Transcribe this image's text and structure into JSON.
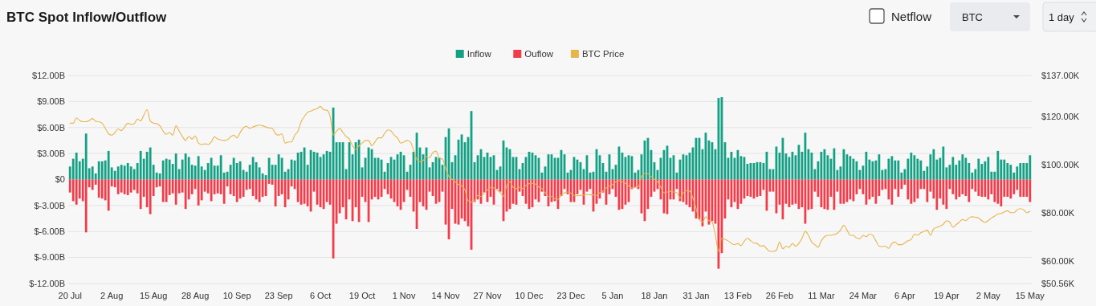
{
  "chart_data": {
    "type": "bar",
    "title": "BTC Spot Inflow/Outflow",
    "annotations": [
      "Netflow",
      "BTC",
      "1 day"
    ],
    "categories": [
      "20 Jul",
      null,
      null,
      null,
      null,
      null,
      null,
      null,
      null,
      null,
      null,
      null,
      null,
      "2 Aug",
      null,
      null,
      null,
      null,
      null,
      null,
      null,
      null,
      null,
      null,
      null,
      null,
      "15 Aug",
      null,
      null,
      null,
      null,
      null,
      null,
      null,
      null,
      null,
      null,
      null,
      null,
      "28 Aug",
      null,
      null,
      null,
      null,
      null,
      null,
      null,
      null,
      null,
      null,
      null,
      null,
      "10 Sep",
      null,
      null,
      null,
      null,
      null,
      null,
      null,
      null,
      null,
      null,
      null,
      null,
      "23 Sep",
      null,
      null,
      null,
      null,
      null,
      null,
      null,
      null,
      null,
      null,
      null,
      null,
      "6 Oct",
      null,
      null,
      null,
      null,
      null,
      null,
      null,
      null,
      null,
      null,
      null,
      null,
      "19 Oct",
      null,
      null,
      null,
      null,
      null,
      null,
      null,
      null,
      null,
      null,
      null,
      null,
      "1 Nov",
      null,
      null,
      null,
      null,
      null,
      null,
      null,
      null,
      null,
      null,
      null,
      null,
      "14 Nov",
      null,
      null,
      null,
      null,
      null,
      null,
      null,
      null,
      null,
      null,
      null,
      null,
      "27 Nov",
      null,
      null,
      null,
      null,
      null,
      null,
      null,
      null,
      null,
      null,
      null,
      null,
      "10 Dec",
      null,
      null,
      null,
      null,
      null,
      null,
      null,
      null,
      null,
      null,
      null,
      null,
      "23 Dec",
      null,
      null,
      null,
      null,
      null,
      null,
      null,
      null,
      null,
      null,
      null,
      null,
      "5 Jan",
      null,
      null,
      null,
      null,
      null,
      null,
      null,
      null,
      null,
      null,
      null,
      null,
      "18 Jan",
      null,
      null,
      null,
      null,
      null,
      null,
      null,
      null,
      null,
      null,
      null,
      null,
      "31 Jan",
      null,
      null,
      null,
      null,
      null,
      null,
      null,
      null,
      null,
      null,
      null,
      null,
      "13 Feb",
      null,
      null,
      null,
      null,
      null,
      null,
      null,
      null,
      null,
      null,
      null,
      null,
      "26 Feb",
      null,
      null,
      null,
      null,
      null,
      null,
      null,
      null,
      null,
      null,
      null,
      null,
      "11 Mar",
      null,
      null,
      null,
      null,
      null,
      null,
      null,
      null,
      null,
      null,
      null,
      null,
      "24 Mar",
      null,
      null,
      null,
      null,
      null,
      null,
      null,
      null,
      null,
      null,
      null,
      null,
      "6 Apr",
      null,
      null,
      null,
      null,
      null,
      null,
      null,
      null,
      null,
      null,
      null,
      null,
      "19 Apr",
      null,
      null,
      null,
      null,
      null,
      null,
      null,
      null,
      null,
      null,
      null,
      null,
      "2 May",
      null,
      null,
      null,
      null,
      null,
      null,
      null,
      null,
      null,
      null,
      null,
      null,
      "15 May"
    ],
    "series": [
      {
        "name": "Inflow",
        "color": "#14a085",
        "values": [
          1.5,
          2.4,
          3.1,
          2.1,
          2.4,
          5.3,
          1.3,
          1.5,
          0.7,
          2.1,
          2.1,
          2.2,
          3.3,
          1.4,
          1.0,
          1.5,
          1.7,
          1.6,
          1.9,
          1.5,
          1.2,
          1.9,
          3.3,
          2.4,
          3.2,
          3.7,
          1.7,
          0.8,
          0.7,
          2.2,
          2.4,
          2.3,
          1.8,
          3.0,
          1.2,
          2.3,
          3.0,
          2.6,
          1.7,
          1.6,
          2.7,
          1.5,
          1.1,
          1.9,
          2.5,
          1.6,
          1.6,
          2.8,
          0.8,
          0.9,
          1.7,
          2.5,
          1.9,
          2.1,
          1.1,
          0.9,
          1.7,
          2.6,
          2.0,
          1.4,
          0.7,
          0.5,
          2.5,
          1.7,
          1.7,
          2.9,
          2.5,
          0.9,
          1.2,
          2.3,
          2.2,
          3.1,
          3.2,
          3.7,
          1.7,
          3.4,
          3.2,
          3.1,
          2.6,
          2.9,
          3.3,
          3.2,
          8.3,
          4.3,
          4.3,
          4.3,
          1.2,
          4.3,
          2.9,
          4.3,
          4.6,
          1.4,
          2.5,
          3.7,
          3.5,
          2.5,
          2.5,
          2.3,
          0.9,
          1.9,
          2.6,
          2.3,
          2.9,
          3.2,
          2.8,
          0.9,
          1.7,
          3.2,
          5.4,
          3.7,
          2.9,
          3.7,
          1.4,
          2.0,
          2.6,
          2.5,
          1.7,
          4.9,
          5.9,
          2.0,
          2.8,
          4.6,
          5.2,
          4.3,
          4.9,
          7.9,
          2.0,
          2.8,
          3.5,
          2.6,
          3.1,
          2.6,
          2.8,
          1.1,
          1.5,
          4.5,
          3.7,
          3.5,
          2.6,
          2.6,
          1.2,
          1.9,
          2.6,
          3.2,
          3.1,
          2.8,
          2.5,
          0.8,
          1.5,
          2.9,
          2.9,
          2.5,
          2.5,
          3.4,
          2.9,
          0.8,
          1.1,
          2.6,
          2.3,
          2.0,
          1.2,
          2.8,
          0.8,
          0.9,
          3.5,
          2.8,
          1.9,
          0.9,
          2.9,
          1.2,
          1.7,
          3.8,
          3.1,
          2.6,
          2.8,
          2.7,
          0.8,
          1.1,
          2.9,
          4.5,
          4.8,
          3.4,
          2.0,
          1.1,
          2.5,
          3.4,
          3.9,
          2.5,
          2.8,
          0.8,
          2.3,
          2.9,
          2.8,
          3.1,
          3.7,
          4.8,
          4.8,
          3.5,
          5.4,
          4.5,
          4.3,
          3.5,
          9.4,
          9.5,
          4.3,
          2.5,
          3.2,
          2.5,
          3.4,
          2.7,
          2.6,
          1.8,
          1.9,
          1.9,
          2.0,
          2.0,
          1.9,
          3.2,
          1.2,
          1.2,
          3.8,
          3.1,
          4.8,
          3.0,
          2.6,
          3.2,
          2.8,
          4.0,
          3.2,
          5.4,
          3.5,
          3.1,
          1.2,
          2.1,
          3.2,
          3.5,
          2.8,
          2.4,
          3.6,
          1.1,
          1.5,
          3.5,
          2.9,
          2.7,
          2.4,
          2.1,
          1.1,
          1.6,
          3.2,
          2.3,
          2.1,
          2.2,
          2.9,
          1.1,
          1.2,
          2.4,
          2.7,
          2.2,
          2.2,
          0.8,
          1.2,
          2.4,
          3.1,
          2.8,
          2.4,
          2.2,
          1.0,
          1.5,
          2.9,
          3.5,
          2.3,
          2.5,
          3.8,
          1.4,
          1.7,
          2.6,
          1.7,
          2.2,
          2.9,
          2.5,
          1.9,
          0.8,
          1.2,
          2.4,
          1.8,
          2.1,
          2.6,
          0.9,
          0.9,
          3.3,
          2.3,
          2.3,
          1.9,
          1.7,
          0.8,
          1.5,
          1.9,
          1.9,
          1.9,
          2.8
        ]
      },
      {
        "name": "Ouflow",
        "color": "#ef3d4c",
        "values": [
          -1.5,
          -2.5,
          -2.9,
          -2.2,
          -2.5,
          -6.1,
          -0.9,
          -1.2,
          -0.6,
          -2.1,
          -2.2,
          -2.4,
          -3.6,
          -0.8,
          -0.9,
          -1.7,
          -1.5,
          -1.7,
          -1.8,
          -1.5,
          -1.2,
          -1.6,
          -3.4,
          -2.0,
          -3.2,
          -4.0,
          -1.9,
          -0.9,
          -0.8,
          -2.6,
          -2.6,
          -1.8,
          -1.6,
          -2.9,
          -1.6,
          -1.5,
          -3.4,
          -2.3,
          -1.7,
          -1.1,
          -3.0,
          -2.4,
          -1.4,
          -1.6,
          -2.5,
          -1.7,
          -1.6,
          -1.7,
          -2.8,
          -0.8,
          -1.7,
          -1.9,
          -2.6,
          -2.2,
          -2.0,
          -1.2,
          -1.1,
          -1.9,
          -2.3,
          -2.6,
          -2.0,
          -1.9,
          -0.5,
          -0.6,
          -3.1,
          -1.9,
          -1.7,
          -3.2,
          -2.3,
          -0.8,
          -1.1,
          -2.6,
          -2.9,
          -2.8,
          -3.1,
          -3.7,
          -1.4,
          -2.9,
          -3.2,
          -3.4,
          -2.6,
          -2.9,
          -9.1,
          -5.1,
          -3.9,
          -3.2,
          -4.6,
          -2.3,
          -4.8,
          -3.2,
          -4.9,
          -2.0,
          -2.6,
          -4.9,
          -2.3,
          -2.0,
          -2.3,
          -2.0,
          -1.1,
          -1.7,
          -2.2,
          -2.6,
          -3.1,
          -3.5,
          -2.6,
          -1.2,
          -2.0,
          -3.7,
          -5.7,
          -2.6,
          -3.1,
          -3.5,
          -1.4,
          -1.9,
          -2.8,
          -2.6,
          -1.4,
          -5.2,
          -6.9,
          -3.4,
          -5.1,
          -5.2,
          -4.5,
          -4.8,
          -5.4,
          -8.1,
          -2.6,
          -2.3,
          -2.8,
          -1.5,
          -2.6,
          -2.0,
          -2.9,
          -1.1,
          -1.4,
          -4.8,
          -3.7,
          -3.4,
          -2.8,
          -2.9,
          -1.4,
          -1.9,
          -2.8,
          -3.4,
          -3.2,
          -2.3,
          -2.6,
          -1.4,
          -1.9,
          -3.1,
          -2.6,
          -2.5,
          -3.4,
          -1.9,
          -1.1,
          -1.7,
          -2.6,
          -2.6,
          -1.7,
          -1.2,
          -2.9,
          -1.4,
          -1.1,
          -3.7,
          -2.8,
          -2.2,
          -1.5,
          -2.9,
          -1.7,
          -1.1,
          -2.0,
          -3.5,
          -3.4,
          -2.9,
          -2.6,
          -1.1,
          -0.9,
          -1.1,
          -3.9,
          -4.8,
          -3.4,
          -2.0,
          -1.4,
          -1.1,
          -2.3,
          -3.9,
          -4.0,
          -2.3,
          -2.3,
          -1.1,
          -2.5,
          -2.6,
          -2.9,
          -3.2,
          -3.7,
          -4.5,
          -4.6,
          -5.4,
          -3.7,
          -5.2,
          -4.8,
          -5.1,
          -10.3,
          -8.5,
          -4.5,
          -2.3,
          -3.2,
          -2.6,
          -3.4,
          -2.8,
          -2.2,
          -1.9,
          -2.0,
          -2.2,
          -2.0,
          -1.9,
          -1.2,
          -3.6,
          -1.4,
          -1.4,
          -3.9,
          -2.9,
          -4.6,
          -2.8,
          -3.2,
          -2.9,
          -2.8,
          -3.4,
          -3.2,
          -5.1,
          -3.5,
          -3.4,
          -1.4,
          -2.0,
          -3.2,
          -3.4,
          -3.5,
          -2.0,
          -3.5,
          -1.4,
          -2.8,
          -2.8,
          -2.6,
          -2.3,
          -2.5,
          -1.7,
          -1.1,
          -1.7,
          -2.9,
          -2.3,
          -2.0,
          -2.8,
          -1.9,
          -1.2,
          -1.1,
          -2.3,
          -2.9,
          -1.1,
          -2.0,
          -1.1,
          -0.6,
          -2.3,
          -2.8,
          -2.6,
          -2.2,
          -1.1,
          -1.1,
          -2.6,
          -1.4,
          -2.2,
          -3.5,
          -2.2,
          -2.9,
          -3.4,
          -1.1,
          -1.7,
          -2.3,
          -2.0,
          -1.7,
          -1.9,
          -2.6,
          -1.1,
          -1.4,
          -1.9,
          -2.0,
          -2.0,
          -2.3,
          -1.7,
          -2.6,
          -2.8,
          -3.1,
          -2.0,
          -2.0,
          -2.2,
          -1.7,
          -1.2,
          -2.0,
          -2.0,
          -2.0,
          -2.6
        ]
      },
      {
        "name": "BTC Price",
        "type": "line",
        "axis": "y2",
        "color": "#e8b54d",
        "values": [
          117.2,
          117.2,
          119.4,
          118.3,
          117.8,
          117.8,
          118.3,
          119.1,
          118,
          117.8,
          117.2,
          115,
          112.8,
          112.2,
          113.3,
          114.8,
          114.1,
          115.6,
          117.2,
          116.7,
          117,
          118.9,
          118.1,
          120.6,
          122.8,
          118.1,
          117.2,
          117,
          116.1,
          113.9,
          112.6,
          113.3,
          112.2,
          116.1,
          113.9,
          111.7,
          110,
          111.7,
          110.6,
          111.9,
          108.9,
          108.3,
          108.6,
          108.3,
          109.4,
          111.5,
          110.6,
          110.2,
          110,
          110.3,
          111.5,
          112.2,
          111.1,
          113.3,
          115.3,
          115.9,
          115,
          115.6,
          116.1,
          116.4,
          116.1,
          115.6,
          115.2,
          115,
          112.8,
          112.2,
          112.8,
          108.9,
          109.4,
          109.4,
          112.2,
          113.9,
          117.8,
          120,
          121.7,
          122.2,
          122.8,
          123.3,
          124.1,
          122.8,
          122.6,
          120,
          112.2,
          113.9,
          115,
          113.3,
          111.7,
          110.6,
          107.8,
          106.3,
          107.8,
          108.9,
          110,
          110,
          107.8,
          109.4,
          111.1,
          111.1,
          113,
          114.4,
          113.9,
          112.2,
          111.1,
          108.9,
          109.4,
          110,
          109.4,
          106.1,
          102.2,
          101.1,
          101.7,
          103.3,
          102.8,
          105,
          105.6,
          102.8,
          102.2,
          98.3,
          95,
          93.9,
          92.8,
          91.7,
          91.1,
          89.4,
          85,
          84.4,
          85,
          87.2,
          86.7,
          88.3,
          89.4,
          90.6,
          90.3,
          89.4,
          88.3,
          86.7,
          91.1,
          92.8,
          90.6,
          90,
          90.6,
          90,
          91.4,
          92,
          92.2,
          91.9,
          90.6,
          90,
          88.3,
          86.7,
          86.7,
          85.8,
          85.6,
          87.2,
          88.3,
          88.6,
          88.1,
          87.2,
          87,
          87.2,
          87.4,
          87.6,
          87.4,
          87.4,
          87.2,
          88.3,
          88.9,
          90.3,
          91.1,
          91.7,
          92.8,
          93.3,
          92.8,
          92.2,
          91.1,
          90.3,
          90.6,
          90.8,
          95,
          96.3,
          96.1,
          95,
          93.9,
          92.8,
          90.6,
          88.3,
          88.6,
          88.9,
          88.6,
          88.3,
          86.1,
          88.3,
          89.1,
          88.9,
          86.1,
          81.7,
          77.2,
          76.1,
          78.3,
          76.7,
          76.1,
          70.6,
          63.9,
          69.4,
          68.9,
          68.3,
          67.2,
          66.7,
          67.2,
          66.3,
          68.1,
          69.4,
          68.3,
          67.4,
          67.2,
          66.1,
          66.3,
          65,
          63.9,
          63.9,
          64.4,
          67.8,
          65,
          66.1,
          65.6,
          67.2,
          66.1,
          67.2,
          69.4,
          72.2,
          70.6,
          67.8,
          66.7,
          65.6,
          68.3,
          70,
          70.6,
          70.6,
          70.9,
          71.4,
          72.8,
          74.7,
          72.8,
          70.6,
          70.6,
          69.4,
          69.2,
          70.6,
          70,
          71.1,
          70.6,
          68.3,
          66.1,
          65.9,
          66.1,
          65.2,
          67.2,
          67.8,
          66.7,
          66.7,
          67.4,
          68.3,
          68.9,
          71.1,
          70.6,
          71.7,
          72.2,
          72.8,
          70.6,
          73.3,
          73.9,
          74.4,
          75.2,
          76.7,
          76.1,
          73.9,
          75,
          76.1,
          77.2,
          76.7,
          77.8,
          78.3,
          78.1,
          77.8,
          76.7,
          75.9,
          76.7,
          77.8,
          78.6,
          79.4,
          79.7,
          80.3,
          80.8,
          80,
          80,
          81.2,
          81.7,
          81.2,
          80,
          80.6
        ]
      }
    ],
    "ylim": [
      -12,
      12
    ],
    "yticks": [
      {
        "value": -12,
        "label": "$-12.00B"
      },
      {
        "value": -9,
        "label": "$-9.00B"
      },
      {
        "value": -6,
        "label": "$-6.00B"
      },
      {
        "value": -3,
        "label": "$-3.00B"
      },
      {
        "value": 0,
        "label": "$0"
      },
      {
        "value": 3,
        "label": "$3.00B"
      },
      {
        "value": 6,
        "label": "$6.00B"
      },
      {
        "value": 9,
        "label": "$9.00B"
      },
      {
        "value": 12,
        "label": "$12.00B"
      }
    ],
    "y2lim": [
      50.56,
      137
    ],
    "y2ticks": [
      {
        "value": 50.56,
        "label": "$50.56K"
      },
      {
        "value": 60,
        "label": "$60.00K"
      },
      {
        "value": 80,
        "label": "$80.00K"
      },
      {
        "value": 100,
        "label": "$100.00K"
      },
      {
        "value": 120,
        "label": "$120.00K"
      },
      {
        "value": 137,
        "label": "$137.00K"
      }
    ],
    "stacked": true,
    "grid": "y",
    "legend": "top"
  }
}
